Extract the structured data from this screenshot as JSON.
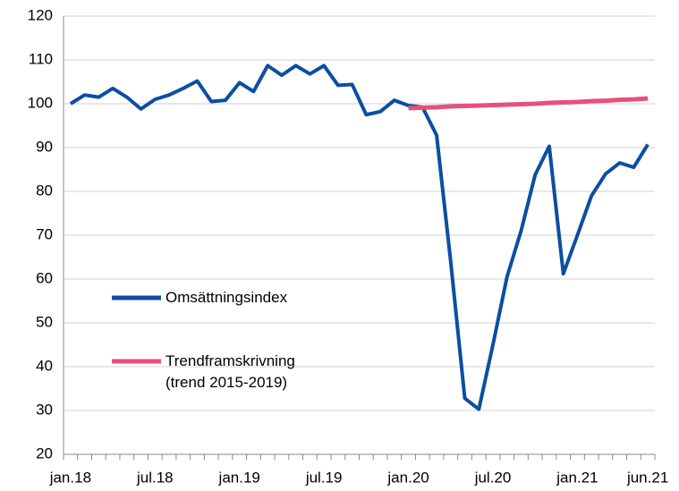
{
  "chart_data": {
    "type": "line",
    "categories": [
      "jan.18",
      null,
      null,
      null,
      null,
      null,
      "jul.18",
      null,
      null,
      null,
      null,
      null,
      "jan.19",
      null,
      null,
      null,
      null,
      null,
      "jul.19",
      null,
      null,
      null,
      null,
      null,
      "jan.20",
      null,
      null,
      null,
      null,
      null,
      "jul.20",
      null,
      null,
      null,
      null,
      null,
      "jan.21",
      null,
      null,
      null,
      null,
      "jun.21"
    ],
    "series": [
      {
        "name": "Omsättningsindex",
        "color": "#0b4ea2",
        "values": [
          100,
          102,
          101.5,
          103.5,
          101.5,
          98.8,
          101,
          102,
          103.5,
          105.2,
          100.5,
          100.8,
          104.8,
          102.8,
          108.7,
          106.5,
          108.7,
          106.8,
          108.7,
          104.2,
          104.4,
          97.5,
          98.2,
          100.8,
          99.6,
          99.2,
          92.8,
          64,
          32.8,
          30.3,
          45,
          60.5,
          71,
          83.8,
          90.3,
          61.2,
          70,
          79,
          84,
          86.5,
          85.5,
          90.7
        ]
      },
      {
        "name": "Trendframskrivning (trend 2015-2019)",
        "color": "#e8507a",
        "values": [
          null,
          null,
          null,
          null,
          null,
          null,
          null,
          null,
          null,
          null,
          null,
          null,
          null,
          null,
          null,
          null,
          null,
          null,
          null,
          null,
          null,
          null,
          null,
          null,
          99.0,
          99.1,
          99.2,
          99.4,
          99.5,
          99.6,
          99.7,
          99.8,
          99.9,
          100.0,
          100.2,
          100.3,
          100.4,
          100.6,
          100.7,
          100.9,
          101.0,
          101.2
        ]
      }
    ],
    "ylim": [
      20,
      120
    ],
    "yticks": [
      20,
      30,
      40,
      50,
      60,
      70,
      80,
      90,
      100,
      110,
      120
    ],
    "grid": true
  }
}
